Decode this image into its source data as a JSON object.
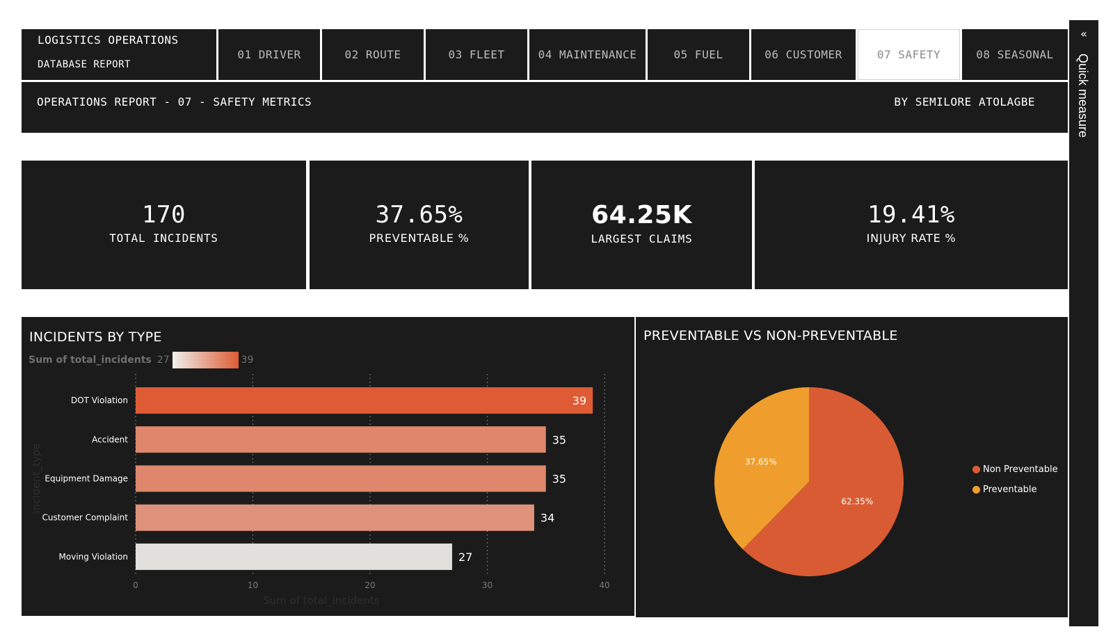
{
  "header": {
    "brand_line1": "LOGISTICS OPERATIONS",
    "brand_line2": "DATABASE REPORT",
    "tabs": [
      {
        "label": "01 DRIVER"
      },
      {
        "label": "02 ROUTE"
      },
      {
        "label": "03 FLEET"
      },
      {
        "label": "04 MAINTENANCE"
      },
      {
        "label": "05 FUEL"
      },
      {
        "label": "06 CUSTOMER"
      },
      {
        "label": "07 SAFETY"
      },
      {
        "label": "08 SEASONAL"
      }
    ],
    "active_tab": "07 SAFETY"
  },
  "subheader": {
    "title": "OPERATIONS REPORT - 07 - SAFETY METRICS",
    "author": "BY SEMILORE ATOLAGBE"
  },
  "kpis": [
    {
      "value": "170",
      "label": "TOTAL INCIDENTS"
    },
    {
      "value": "37.65%",
      "label": "PREVENTABLE %"
    },
    {
      "value": "64.25K",
      "label": "LARGEST CLAIMS"
    },
    {
      "value": "19.41%",
      "label": "INJURY RATE %"
    }
  ],
  "bar_panel": {
    "title": "INCIDENTS BY TYPE",
    "legend_label": "Sum of total_incidents",
    "legend_min": "27",
    "legend_max": "39"
  },
  "pie_panel": {
    "title": "PREVENTABLE VS NON-PREVENTABLE"
  },
  "quick_measure": {
    "label": "Quick measure",
    "chevron": "«"
  },
  "colors": {
    "background": "#1b1b1b",
    "bar_high": "#de5b35",
    "bar_low": "#e1e0dc",
    "pie_non_preventable": "#d95b33",
    "pie_preventable": "#ef9d2c"
  },
  "chart_data": [
    {
      "type": "bar",
      "orientation": "horizontal",
      "title": "INCIDENTS BY TYPE",
      "categories": [
        "DOT Violation",
        "Accident",
        "Equipment Damage",
        "Customer Complaint",
        "Moving Violation"
      ],
      "values": [
        39,
        35,
        35,
        34,
        27
      ],
      "data_labels": [
        "39",
        "35",
        "35",
        "34",
        "27"
      ],
      "xlabel": "Sum of total_incidents",
      "ylabel": "incident_type",
      "xlim": [
        0,
        40
      ],
      "x_ticks": [
        "0",
        "10",
        "20",
        "30",
        "40"
      ],
      "grid": "vertical dotted"
    },
    {
      "type": "pie",
      "title": "PREVENTABLE VS NON-PREVENTABLE",
      "slices": [
        {
          "name": "Non Preventable",
          "value": 62.35,
          "label": "62.35%",
          "color": "#d95b33"
        },
        {
          "name": "Preventable",
          "value": 37.65,
          "label": "37.65%",
          "color": "#ef9d2c"
        }
      ],
      "legend_position": "right"
    }
  ]
}
